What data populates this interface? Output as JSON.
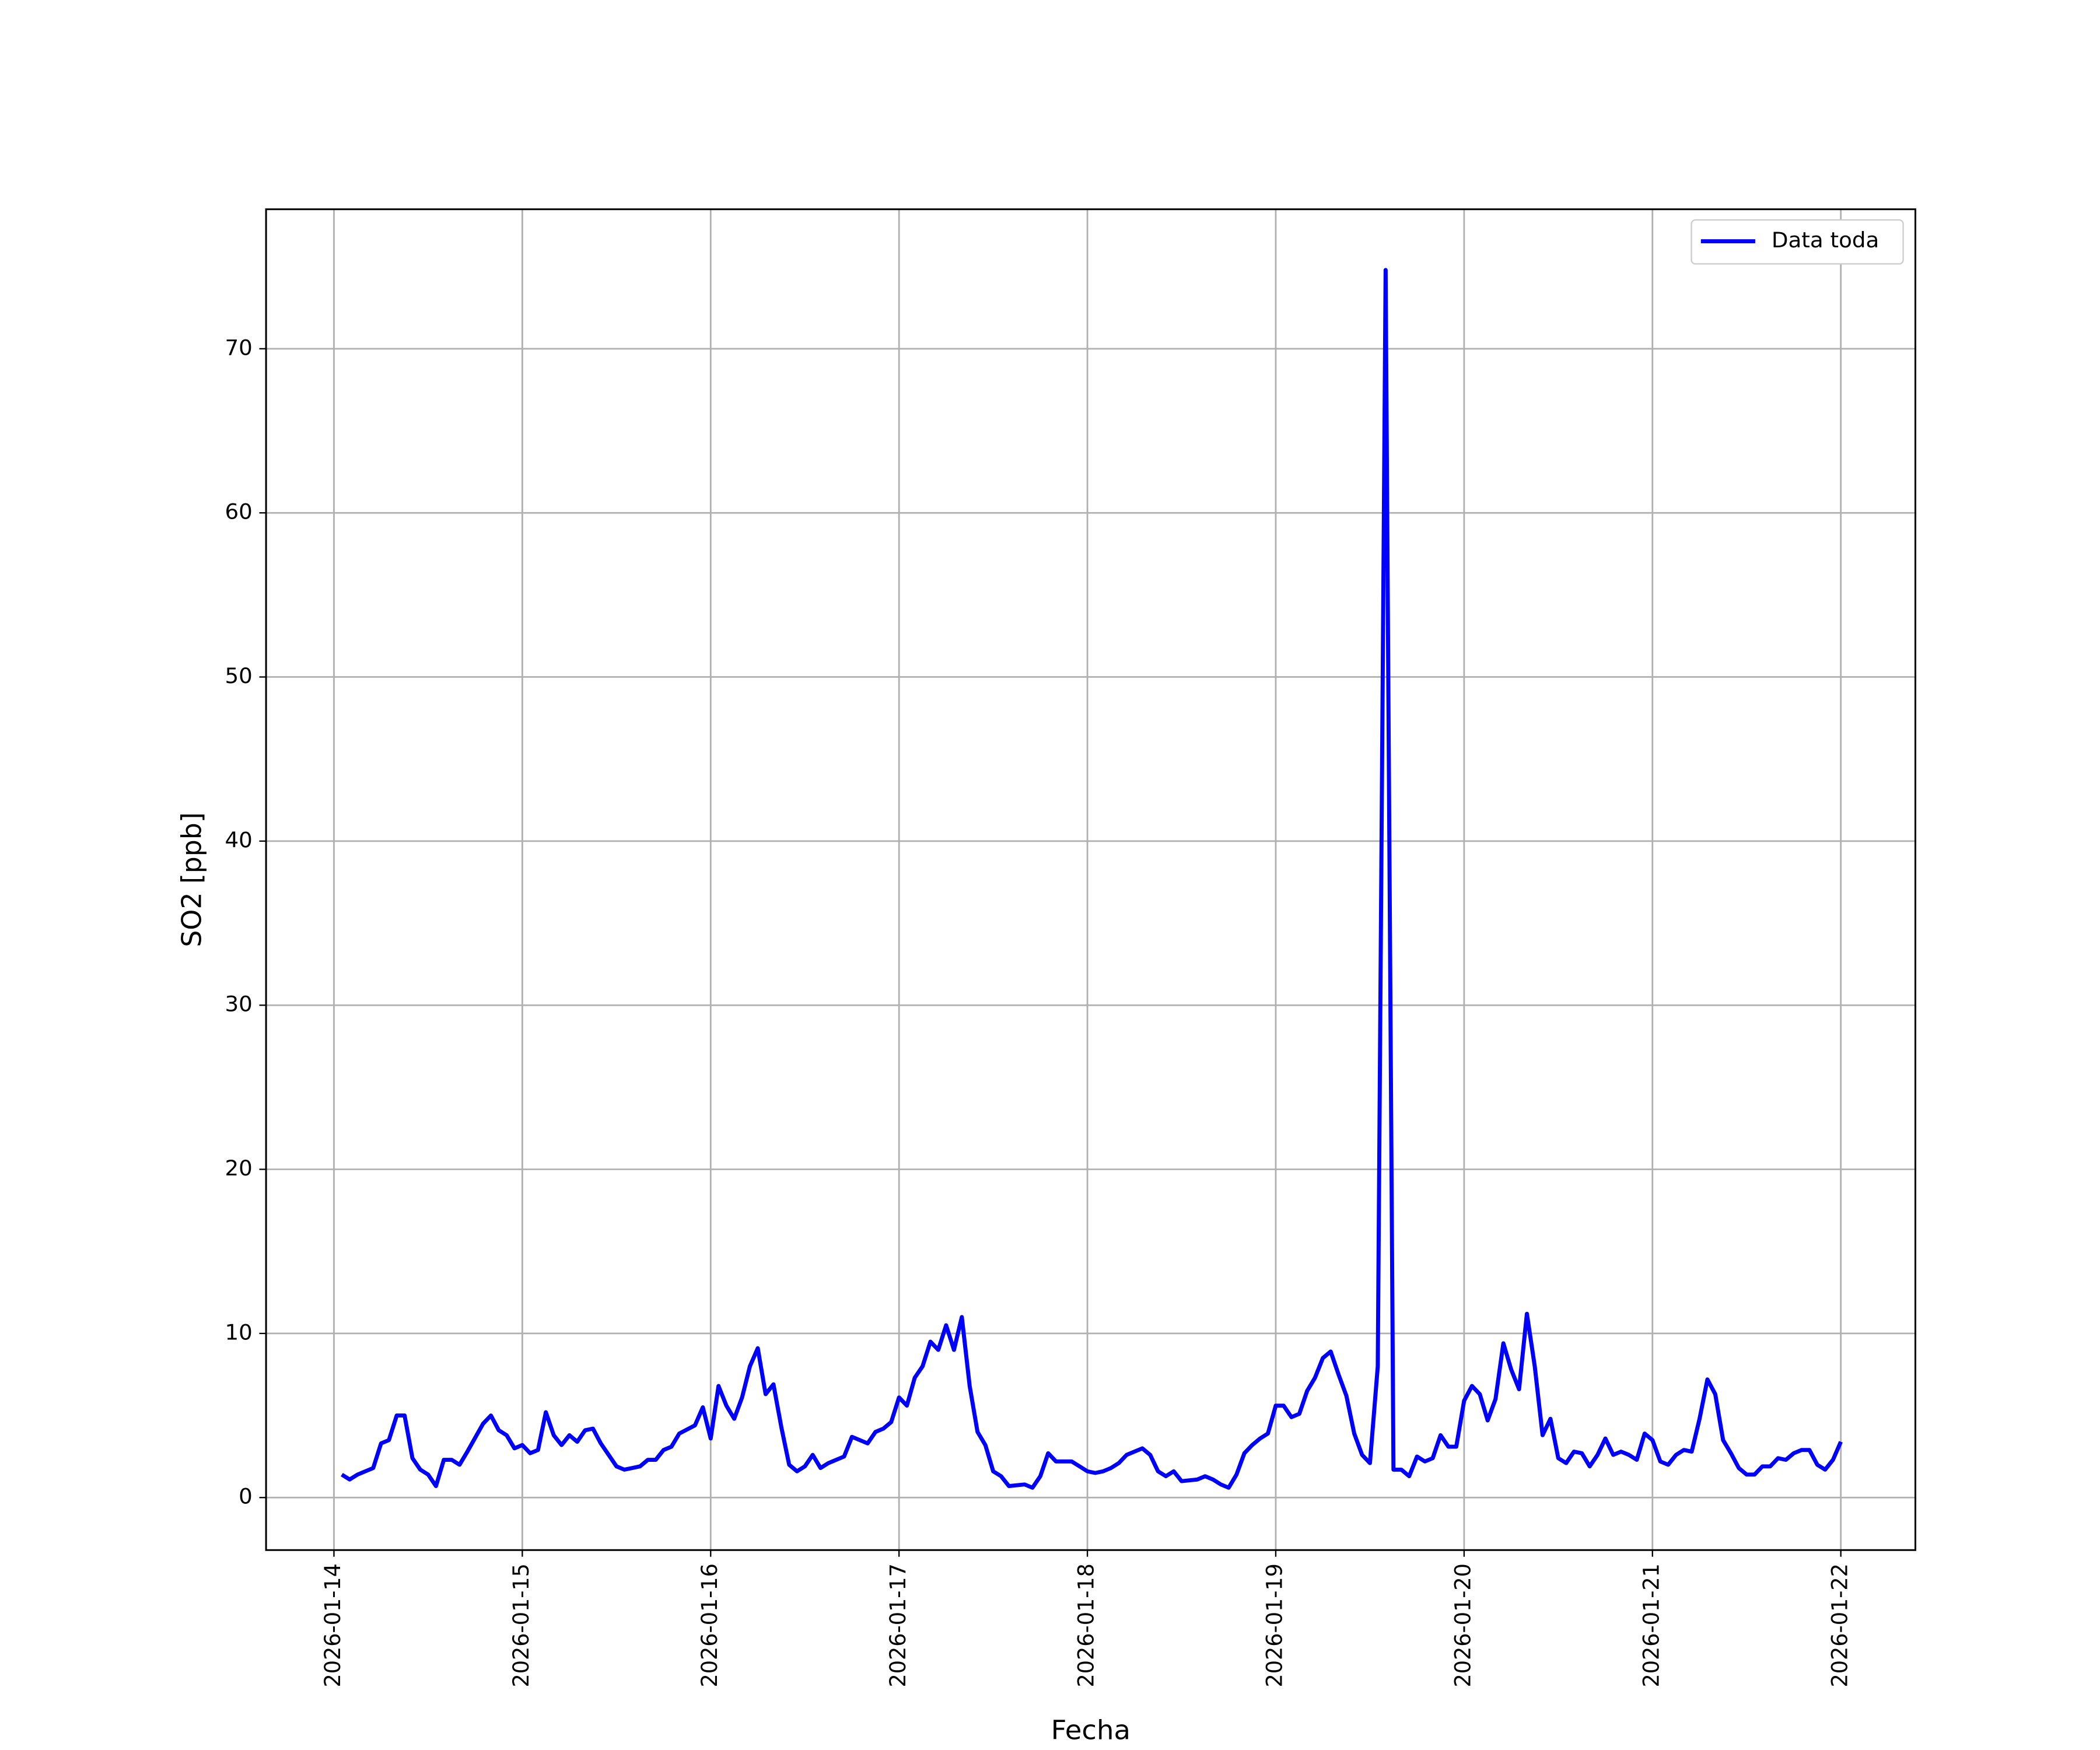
{
  "chart_data": {
    "type": "line",
    "xlabel": "Fecha",
    "ylabel": "SO2 [ppb]",
    "legend": "upper right",
    "grid": true,
    "xlim": [
      "2026-01-13T15:21",
      "2026-01-22T09:30"
    ],
    "xticks": [
      "2026-01-14",
      "2026-01-15",
      "2026-01-16",
      "2026-01-17",
      "2026-01-18",
      "2026-01-19",
      "2026-01-20",
      "2026-01-21",
      "2026-01-22"
    ],
    "ylim": [
      -3.2,
      78.5
    ],
    "yticks": [
      0,
      10,
      20,
      30,
      40,
      50,
      60,
      70
    ],
    "x": [
      "2026-01-14T01:00",
      "2026-01-14T02:00",
      "2026-01-14T03:00",
      "2026-01-14T05:00",
      "2026-01-14T06:00",
      "2026-01-14T07:00",
      "2026-01-14T08:00",
      "2026-01-14T09:00",
      "2026-01-14T10:00",
      "2026-01-14T11:00",
      "2026-01-14T12:00",
      "2026-01-14T13:00",
      "2026-01-14T14:00",
      "2026-01-14T15:00",
      "2026-01-14T16:00",
      "2026-01-14T17:00",
      "2026-01-14T19:00",
      "2026-01-14T20:00",
      "2026-01-14T21:00",
      "2026-01-14T22:00",
      "2026-01-14T23:00",
      "2026-01-15T00:00",
      "2026-01-15T01:00",
      "2026-01-15T02:00",
      "2026-01-15T03:00",
      "2026-01-15T04:00",
      "2026-01-15T05:00",
      "2026-01-15T06:00",
      "2026-01-15T07:00",
      "2026-01-15T08:00",
      "2026-01-15T09:00",
      "2026-01-15T10:00",
      "2026-01-15T11:00",
      "2026-01-15T12:00",
      "2026-01-15T13:00",
      "2026-01-15T14:00",
      "2026-01-15T15:00",
      "2026-01-15T16:00",
      "2026-01-15T17:00",
      "2026-01-15T18:00",
      "2026-01-15T19:00",
      "2026-01-15T20:00",
      "2026-01-15T22:00",
      "2026-01-15T23:00",
      "2026-01-16T00:00",
      "2026-01-16T01:00",
      "2026-01-16T02:00",
      "2026-01-16T03:00",
      "2026-01-16T04:00",
      "2026-01-16T05:00",
      "2026-01-16T06:00",
      "2026-01-16T07:00",
      "2026-01-16T08:00",
      "2026-01-16T09:00",
      "2026-01-16T10:00",
      "2026-01-16T11:00",
      "2026-01-16T12:00",
      "2026-01-16T13:00",
      "2026-01-16T14:00",
      "2026-01-16T15:00",
      "2026-01-16T17:00",
      "2026-01-16T18:00",
      "2026-01-16T19:00",
      "2026-01-16T20:00",
      "2026-01-16T21:00",
      "2026-01-16T22:00",
      "2026-01-16T23:00",
      "2026-01-17T00:00",
      "2026-01-17T01:00",
      "2026-01-17T02:00",
      "2026-01-17T03:00",
      "2026-01-17T04:00",
      "2026-01-17T05:00",
      "2026-01-17T06:00",
      "2026-01-17T07:00",
      "2026-01-17T08:00",
      "2026-01-17T09:00",
      "2026-01-17T10:00",
      "2026-01-17T11:00",
      "2026-01-17T12:00",
      "2026-01-17T13:00",
      "2026-01-17T14:00",
      "2026-01-17T16:00",
      "2026-01-17T17:00",
      "2026-01-17T18:00",
      "2026-01-17T19:00",
      "2026-01-17T20:00",
      "2026-01-17T22:00",
      "2026-01-17T23:00",
      "2026-01-18T00:00",
      "2026-01-18T01:00",
      "2026-01-18T02:00",
      "2026-01-18T03:00",
      "2026-01-18T04:00",
      "2026-01-18T05:00",
      "2026-01-18T07:00",
      "2026-01-18T08:00",
      "2026-01-18T09:00",
      "2026-01-18T10:00",
      "2026-01-18T11:00",
      "2026-01-18T12:00",
      "2026-01-18T14:00",
      "2026-01-18T15:00",
      "2026-01-18T16:00",
      "2026-01-18T17:00",
      "2026-01-18T18:00",
      "2026-01-18T19:00",
      "2026-01-18T20:00",
      "2026-01-18T21:00",
      "2026-01-18T22:00",
      "2026-01-18T23:00",
      "2026-01-19T00:00",
      "2026-01-19T01:00",
      "2026-01-19T02:00",
      "2026-01-19T03:00",
      "2026-01-19T04:00",
      "2026-01-19T05:00",
      "2026-01-19T06:00",
      "2026-01-19T07:00",
      "2026-01-19T08:00",
      "2026-01-19T09:00",
      "2026-01-19T10:00",
      "2026-01-19T11:00",
      "2026-01-19T12:00",
      "2026-01-19T13:00",
      "2026-01-19T14:00",
      "2026-01-19T15:00",
      "2026-01-19T16:00",
      "2026-01-19T17:00",
      "2026-01-19T18:00",
      "2026-01-19T19:00",
      "2026-01-19T20:00",
      "2026-01-19T21:00",
      "2026-01-19T22:00",
      "2026-01-19T23:00",
      "2026-01-20T00:00",
      "2026-01-20T01:00",
      "2026-01-20T02:00",
      "2026-01-20T03:00",
      "2026-01-20T04:00",
      "2026-01-20T05:00",
      "2026-01-20T06:00",
      "2026-01-20T07:00",
      "2026-01-20T08:00",
      "2026-01-20T09:00",
      "2026-01-20T10:00",
      "2026-01-20T11:00",
      "2026-01-20T12:00",
      "2026-01-20T13:00",
      "2026-01-20T14:00",
      "2026-01-20T15:00",
      "2026-01-20T16:00",
      "2026-01-20T17:00",
      "2026-01-20T18:00",
      "2026-01-20T19:00",
      "2026-01-20T20:00",
      "2026-01-20T21:00",
      "2026-01-20T22:00",
      "2026-01-20T23:00",
      "2026-01-21T00:00",
      "2026-01-21T01:00",
      "2026-01-21T02:00",
      "2026-01-21T03:00",
      "2026-01-21T04:00",
      "2026-01-21T05:00",
      "2026-01-21T06:00",
      "2026-01-21T07:00",
      "2026-01-21T08:00",
      "2026-01-21T09:00",
      "2026-01-21T10:00",
      "2026-01-21T11:00",
      "2026-01-21T12:00",
      "2026-01-21T13:00",
      "2026-01-21T14:00",
      "2026-01-21T15:00",
      "2026-01-21T16:00",
      "2026-01-21T17:00",
      "2026-01-21T18:00",
      "2026-01-21T19:00",
      "2026-01-21T20:00",
      "2026-01-21T21:00",
      "2026-01-21T22:00",
      "2026-01-21T23:00",
      "2026-01-22T00:00"
    ],
    "series": [
      {
        "name": "Data toda",
        "color": "#0000ff",
        "values": [
          1.4,
          1.1,
          1.4,
          1.8,
          3.3,
          3.5,
          5.0,
          5.0,
          2.4,
          1.7,
          1.4,
          0.7,
          2.3,
          2.3,
          2.0,
          2.8,
          4.5,
          5.0,
          4.1,
          3.8,
          3.0,
          3.2,
          2.7,
          2.9,
          5.2,
          3.8,
          3.2,
          3.8,
          3.4,
          4.1,
          4.2,
          3.3,
          2.6,
          1.9,
          1.7,
          1.8,
          1.9,
          2.3,
          2.3,
          2.9,
          3.1,
          3.9,
          4.4,
          5.5,
          3.6,
          6.8,
          5.6,
          4.8,
          6.1,
          8.0,
          9.1,
          6.3,
          6.9,
          4.3,
          2.0,
          1.6,
          1.9,
          2.6,
          1.8,
          2.1,
          2.5,
          3.7,
          3.5,
          3.3,
          4.0,
          4.2,
          4.6,
          6.1,
          5.6,
          7.3,
          8.0,
          9.5,
          9.0,
          10.5,
          9.0,
          11.0,
          6.8,
          4.0,
          3.2,
          1.6,
          1.3,
          0.7,
          0.8,
          0.6,
          1.3,
          2.7,
          2.2,
          2.2,
          1.9,
          1.6,
          1.5,
          1.6,
          1.8,
          2.1,
          2.6,
          3.0,
          2.6,
          1.6,
          1.3,
          1.6,
          1.0,
          1.1,
          1.3,
          1.1,
          0.8,
          0.6,
          1.4,
          2.7,
          3.2,
          3.6,
          3.9,
          5.6,
          5.6,
          4.9,
          5.1,
          6.5,
          7.3,
          8.5,
          8.9,
          7.5,
          6.2,
          3.9,
          2.6,
          2.1,
          8.0,
          74.8,
          1.7,
          1.7,
          1.3,
          2.5,
          2.2,
          2.4,
          3.8,
          3.1,
          3.1,
          5.9,
          6.8,
          6.3,
          4.7,
          6.0,
          9.4,
          7.8,
          6.6,
          11.2,
          8.0,
          3.8,
          4.8,
          2.4,
          2.1,
          2.8,
          2.7,
          1.9,
          2.6,
          3.6,
          2.6,
          2.8,
          2.6,
          2.3,
          3.9,
          3.5,
          2.2,
          2.0,
          2.6,
          2.9,
          2.8,
          4.8,
          7.2,
          6.3,
          3.5,
          2.7,
          1.8,
          1.4,
          1.4,
          1.9,
          1.9,
          2.4,
          2.3,
          2.7,
          2.9,
          2.9,
          2.0,
          1.7,
          2.3,
          3.4
        ]
      }
    ]
  }
}
